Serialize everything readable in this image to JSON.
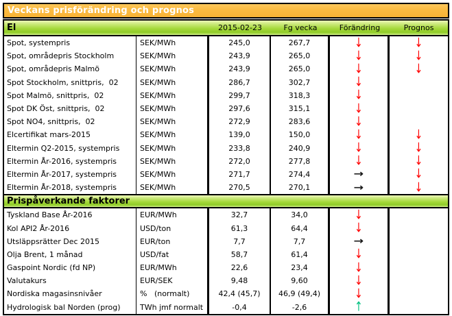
{
  "title": "Veckans prisförändring och prognos",
  "columns": {
    "date": "2015-02-23",
    "previous": "Fg vecka",
    "change": "Förändring",
    "forecast": "Prognos"
  },
  "arrows": {
    "down": "↓",
    "right": "→",
    "up": "↑"
  },
  "colors": {
    "title_bg": "#FBBB41",
    "section_green": "#A6D93C",
    "arrow_down": "#FF0000",
    "arrow_right": "#1A1A1A",
    "arrow_up": "#00BF7F"
  },
  "sections": [
    {
      "name": "El",
      "rows": [
        {
          "label": "Spot, systempris",
          "unit": "SEK/MWh",
          "current": "245,0",
          "previous": "267,7",
          "change": "down",
          "forecast": "down"
        },
        {
          "label": "Spot, områdepris Stockholm",
          "unit": "SEK/MWh",
          "current": "243,9",
          "previous": "265,0",
          "change": "down",
          "forecast": "down"
        },
        {
          "label": "Spot, områdepris Malmö",
          "unit": "SEK/MWh",
          "current": "243,9",
          "previous": "265,0",
          "change": "down",
          "forecast": "down"
        },
        {
          "label": "Spot Stockholm, snittpris,  02",
          "unit": "SEK/MWh",
          "current": "286,7",
          "previous": "302,7",
          "change": "down",
          "forecast": "none"
        },
        {
          "label": "Spot Malmö, snittpris,  02",
          "unit": "SEK/MWh",
          "current": "299,7",
          "previous": "318,3",
          "change": "down",
          "forecast": "none"
        },
        {
          "label": "Spot DK Öst, snittpris,  02",
          "unit": "SEK/MWh",
          "current": "297,6",
          "previous": "315,1",
          "change": "down",
          "forecast": "none"
        },
        {
          "label": "Spot NO4, snittpris,  02",
          "unit": "SEK/MWh",
          "current": "272,9",
          "previous": "283,6",
          "change": "down",
          "forecast": "none"
        },
        {
          "label": "Elcertifikat mars-2015",
          "unit": "SEK/MWh",
          "current": "139,0",
          "previous": "150,0",
          "change": "down",
          "forecast": "down"
        },
        {
          "label": "Eltermin Q2-2015, systempris",
          "unit": "SEK/MWh",
          "current": "233,8",
          "previous": "240,9",
          "change": "down",
          "forecast": "down"
        },
        {
          "label": "Eltermin År-2016, systempris",
          "unit": "SEK/MWh",
          "current": "272,0",
          "previous": "277,8",
          "change": "down",
          "forecast": "down"
        },
        {
          "label": "Eltermin År-2017, systempris",
          "unit": "SEK/MWh",
          "current": "271,7",
          "previous": "274,4",
          "change": "right",
          "forecast": "down"
        },
        {
          "label": "Eltermin År-2018, systempris",
          "unit": "SEK/MWh",
          "current": "270,5",
          "previous": "270,1",
          "change": "right",
          "forecast": "down"
        }
      ]
    },
    {
      "name": "Prispåverkande faktorer",
      "rows": [
        {
          "label": "Tyskland Base År-2016",
          "unit": "EUR/MWh",
          "current": "32,7",
          "previous": "34,0",
          "change": "down",
          "forecast": "none"
        },
        {
          "label": "Kol API2 År-2016",
          "unit": "USD/ton",
          "current": "61,3",
          "previous": "64,4",
          "change": "down",
          "forecast": "none"
        },
        {
          "label": "Utsläppsrätter Dec 2015",
          "unit": "EUR/ton",
          "current": "7,7",
          "previous": "7,7",
          "change": "right",
          "forecast": "none"
        },
        {
          "label": "Olja Brent, 1 månad",
          "unit": "USD/fat",
          "current": "58,7",
          "previous": "61,4",
          "change": "down",
          "forecast": "none"
        },
        {
          "label": "Gaspoint Nordic (fd NP)",
          "unit": "EUR/MWh",
          "current": "22,6",
          "previous": "23,4",
          "change": "down",
          "forecast": "none"
        },
        {
          "label": "Valutakurs",
          "unit": "EUR/SEK",
          "current": "9,48",
          "previous": "9,60",
          "change": "down",
          "forecast": "none"
        },
        {
          "label": "Nordiska magasinsnivåer",
          "unit": "%   (normalt)",
          "current": "42,4 (45,7)",
          "previous": "46,9 (49,4)",
          "change": "down",
          "forecast": "none"
        },
        {
          "label": "Hydrologisk bal Norden (prog)",
          "unit": "TWh jmf normalt",
          "current": "-0,4",
          "previous": "-2,6",
          "change": "up",
          "forecast": "none"
        }
      ]
    }
  ]
}
